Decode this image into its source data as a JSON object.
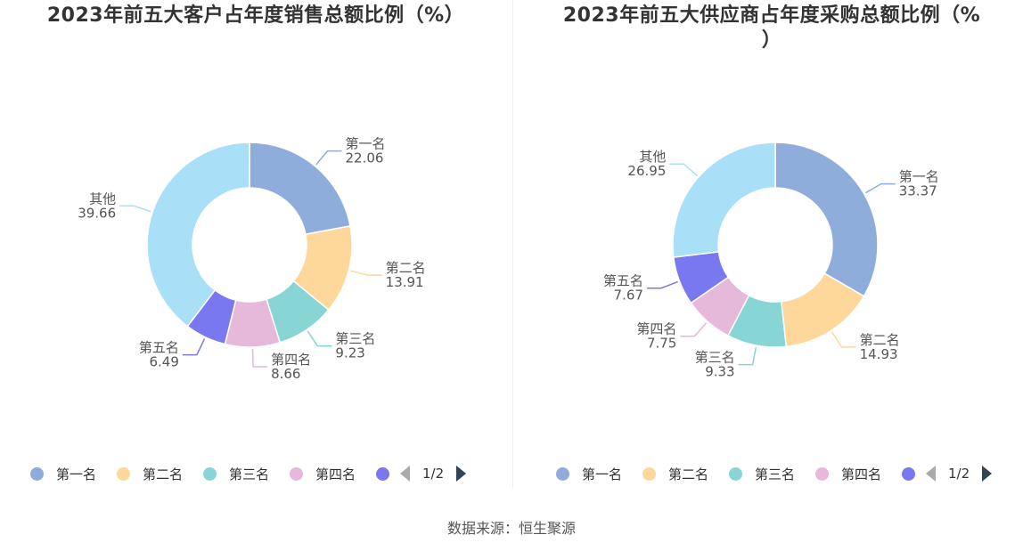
{
  "colors": {
    "first": "#8fadda",
    "second": "#fdd89a",
    "third": "#88d5d6",
    "fourth": "#e6b8da",
    "fifth": "#7a78f0",
    "other": "#aadff8"
  },
  "charts": [
    {
      "title": "2023年前五大客户占年度销售总额比例（%）",
      "legend": [
        "第一名",
        "第二名",
        "第三名",
        "第四名"
      ],
      "pager": "1/2",
      "chart_data": {
        "type": "pie",
        "donut": true,
        "categories": [
          "第一名",
          "第二名",
          "第三名",
          "第四名",
          "第五名",
          "其他"
        ],
        "values": [
          22.06,
          13.91,
          9.23,
          8.66,
          6.49,
          39.66
        ],
        "value_labels": [
          "22.06",
          "13.91",
          "9.23",
          "8.66",
          "6.49",
          "39.66"
        ],
        "legend_position": "bottom"
      }
    },
    {
      "title": "2023年前五大供应商占年度采购总额比例（%\n）",
      "legend": [
        "第一名",
        "第二名",
        "第三名",
        "第四名"
      ],
      "pager": "1/2",
      "chart_data": {
        "type": "pie",
        "donut": true,
        "categories": [
          "第一名",
          "第二名",
          "第三名",
          "第四名",
          "第五名",
          "其他"
        ],
        "values": [
          33.37,
          14.93,
          9.33,
          7.75,
          7.67,
          26.95
        ],
        "value_labels": [
          "33.37",
          "14.93",
          "9.33",
          "7.75",
          "7.67",
          "26.95"
        ],
        "legend_position": "bottom"
      }
    }
  ],
  "source": "数据来源：恒生聚源"
}
